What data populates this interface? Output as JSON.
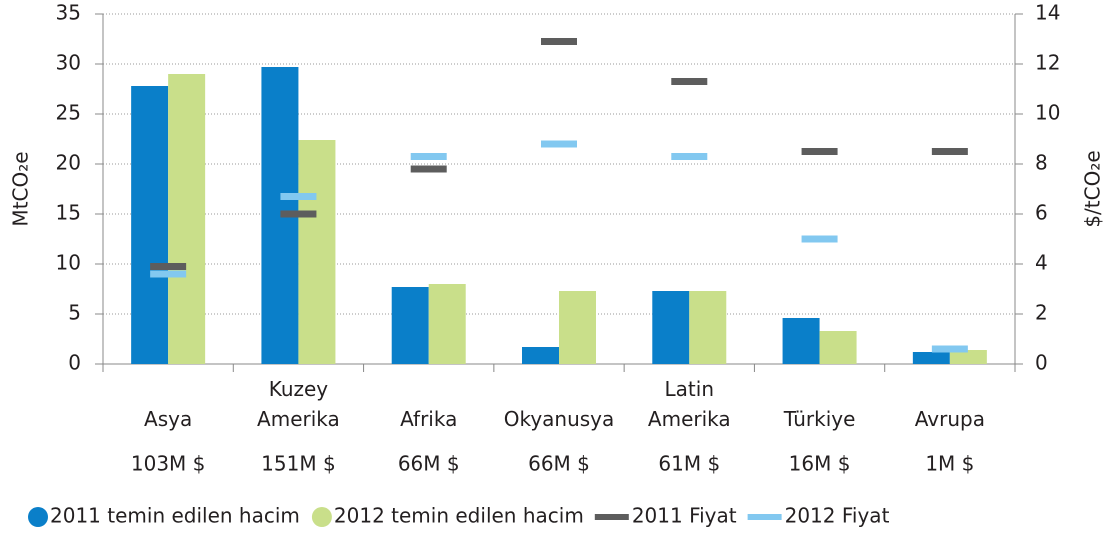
{
  "chart_data": {
    "type": "bar",
    "categories": [
      "Asya",
      "Kuzey Amerika",
      "Afrika",
      "Okyanusya",
      "Latin Amerika",
      "Türkiye",
      "Avrupa"
    ],
    "totals": [
      "103M $",
      "151M $",
      "66M $",
      "66M $",
      "61M $",
      "16M $",
      "1M $"
    ],
    "ylabel": "MtCO₂e",
    "y2label": "$/tCO₂e",
    "ylim": [
      0,
      35
    ],
    "yticks": [
      0,
      5,
      10,
      15,
      20,
      25,
      30,
      35
    ],
    "y2lim": [
      0,
      14
    ],
    "y2ticks": [
      0,
      2,
      4,
      6,
      8,
      10,
      12,
      14
    ],
    "grid": true,
    "legend": "bottom",
    "series": [
      {
        "name": "2011 temin edilen hacim",
        "color": "#0a7fc9",
        "values": [
          27.8,
          29.7,
          7.7,
          1.7,
          7.3,
          4.6,
          1.2
        ]
      },
      {
        "name": "2012 temin edilen hacim",
        "color": "#c9df8a",
        "values": [
          29,
          22.4,
          8,
          7.3,
          7.3,
          3.3,
          1.4
        ]
      },
      {
        "name": "2011 Fiyat",
        "color": "#5d5d5d",
        "axis": "y2",
        "values": [
          3.9,
          6.0,
          7.8,
          12.9,
          11.3,
          8.5,
          8.5
        ]
      },
      {
        "name": "2012 Fiyat",
        "color": "#82c8f0",
        "axis": "y2",
        "values": [
          3.6,
          6.7,
          8.3,
          8.8,
          8.3,
          5.0,
          0.6
        ]
      }
    ]
  }
}
